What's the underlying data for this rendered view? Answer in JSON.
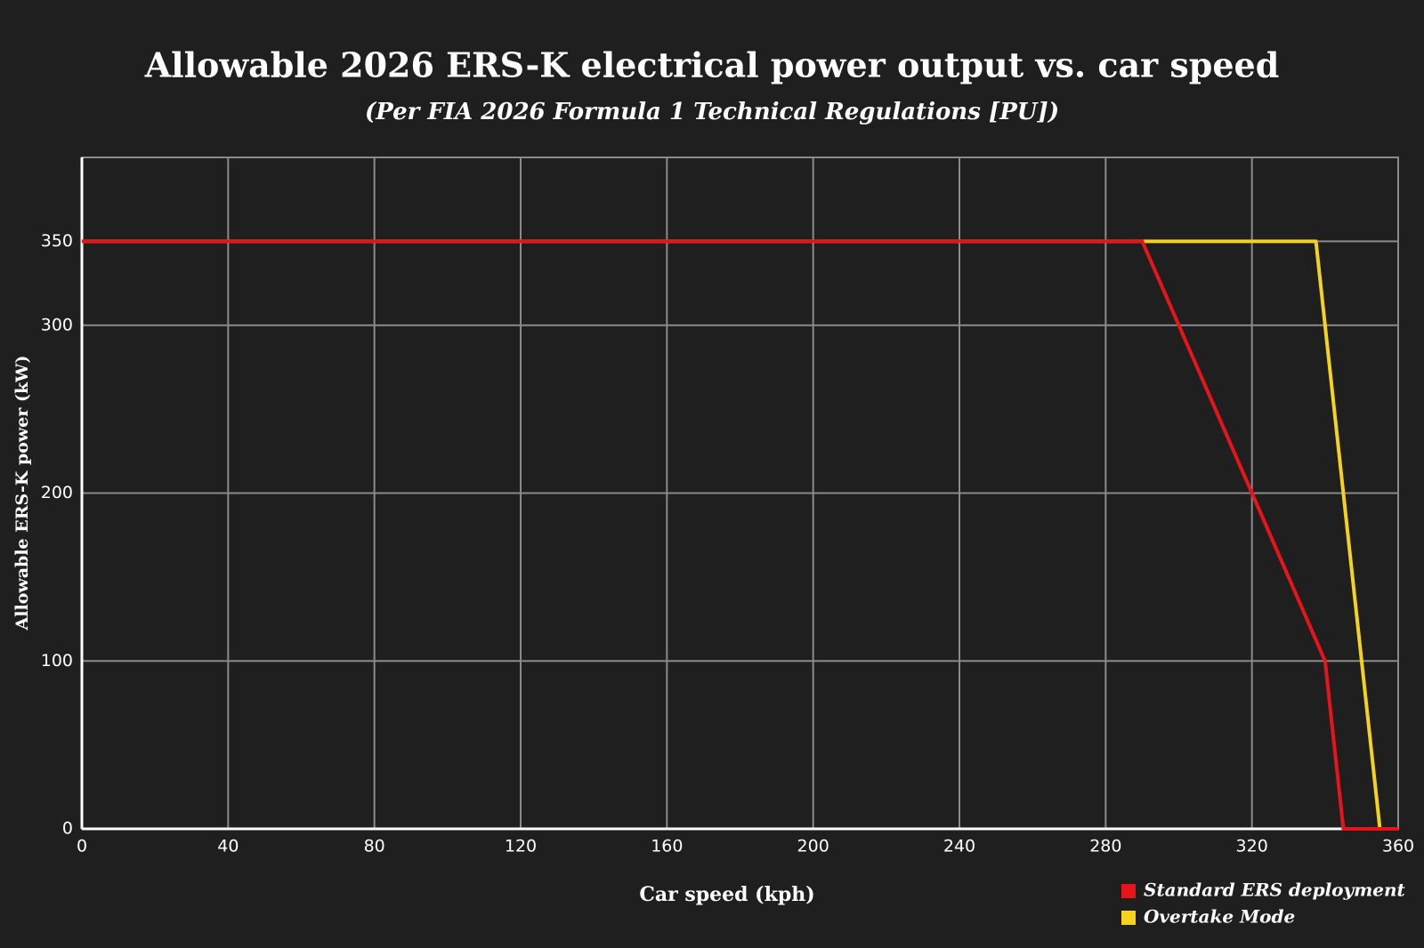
{
  "chart_data": {
    "type": "line",
    "title": "Allowable 2026 ERS-K electrical power output vs. car speed",
    "subtitle": "(Per FIA 2026 Formula 1 Technical Regulations [PU])",
    "x_label": "Car speed (kph)",
    "y_label": "Allowable ERS-K power (kW)",
    "series": [
      {
        "name": "Standard ERS deployment",
        "color": "#e8141b",
        "x": [
          0,
          290,
          340,
          345,
          360
        ],
        "values": [
          350,
          350,
          100,
          0,
          0
        ]
      },
      {
        "name": "Overtake Mode",
        "color": "#f5d21d",
        "x": [
          0,
          337.5,
          355
        ],
        "values": [
          350,
          350,
          0
        ]
      }
    ],
    "xlim": [
      0,
      360
    ],
    "xticks": [
      0,
      40,
      80,
      120,
      160,
      200,
      240,
      280,
      320,
      360
    ],
    "ylim": [
      0,
      400
    ],
    "yticks": [
      0,
      100,
      200,
      300,
      350
    ],
    "grid": true,
    "legend": "bottom-right"
  }
}
